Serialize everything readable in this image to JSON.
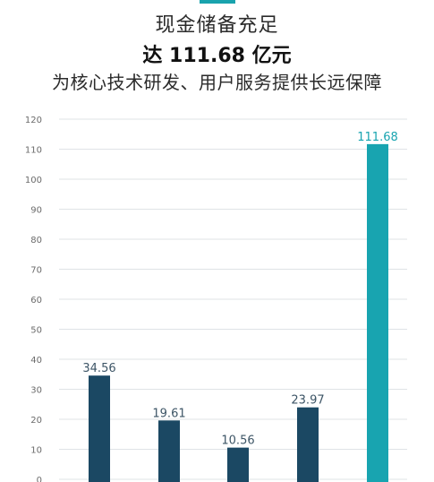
{
  "header": {
    "line1": "现金储备充足",
    "line2": "达 111.68 亿元",
    "line3": "为核心技术研发、用户服务提供长远保障"
  },
  "colors": {
    "accent": "#19a3ad",
    "bar_default": "#1b4863",
    "bar_highlight": "#18a4b0",
    "grid": "#dfe3e6",
    "axis_text": "#6b6b6b"
  },
  "chart_data": {
    "type": "bar",
    "categories": [
      "",
      "",
      "",
      "",
      ""
    ],
    "values": [
      34.56,
      19.61,
      10.56,
      23.97,
      111.68
    ],
    "data_labels": [
      "34.56",
      "19.61",
      "10.56",
      "23.97",
      "111.68"
    ],
    "highlight_index": 4,
    "ylim": [
      0,
      120
    ],
    "yticks": [
      0,
      10,
      20,
      30,
      40,
      50,
      60,
      70,
      80,
      90,
      100,
      110,
      120
    ],
    "grid": true,
    "legend": "none",
    "title": "",
    "xlabel": "",
    "ylabel": ""
  }
}
